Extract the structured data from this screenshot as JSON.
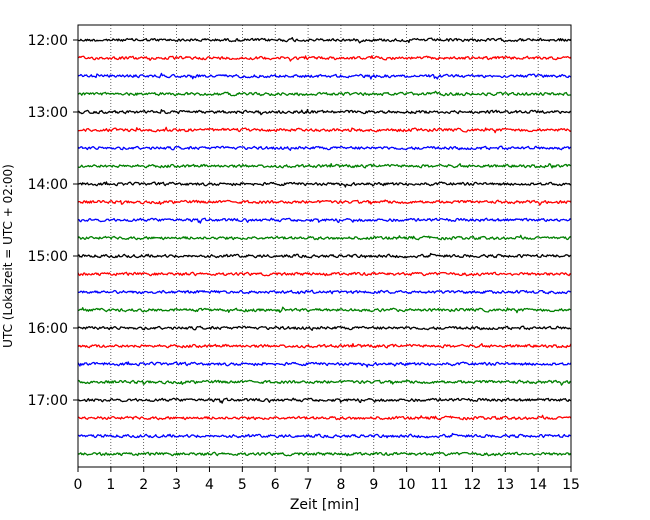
{
  "chart_data": {
    "type": "line",
    "title": "",
    "xlabel": "Zeit  [min]",
    "ylabel": "UTC (Lokalzeit = UTC + 02:00)",
    "xlim": [
      0,
      15
    ],
    "x_ticks": [
      "0",
      "1",
      "2",
      "3",
      "4",
      "5",
      "6",
      "7",
      "8",
      "9",
      "10",
      "11",
      "12",
      "13",
      "14",
      "15"
    ],
    "y_tick_labels": [
      "12:00",
      "13:00",
      "14:00",
      "15:00",
      "16:00",
      "17:00"
    ],
    "grid": "vertical dotted",
    "trace_interval_minutes": 15,
    "trace_count": 24,
    "start_time": "12:00",
    "trace_colors": [
      "#000000",
      "#ff0000",
      "#0000ff",
      "#008000"
    ]
  }
}
